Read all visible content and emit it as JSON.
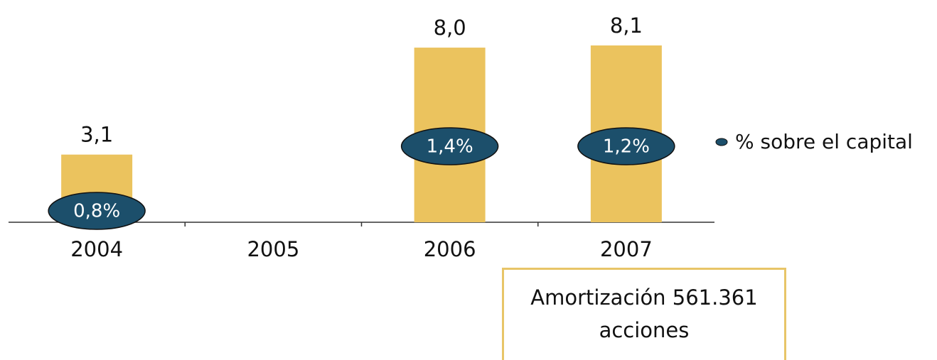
{
  "chart_data": {
    "type": "bar",
    "categories": [
      "2004",
      "2005",
      "2006",
      "2007"
    ],
    "series": [
      {
        "name": "Amortización",
        "color": "#ebc35e",
        "values": [
          3.1,
          null,
          8.0,
          8.1
        ],
        "value_labels": [
          "3,1",
          null,
          "8,0",
          "8,1"
        ]
      },
      {
        "name": "% sobre el capital",
        "color": "#1c4f6b",
        "values": [
          0.8,
          null,
          1.4,
          1.2
        ],
        "value_labels": [
          "0,8%",
          null,
          "1,4%",
          "1,2%"
        ]
      }
    ],
    "annotation": "Amortización  561.361 acciones"
  }
}
